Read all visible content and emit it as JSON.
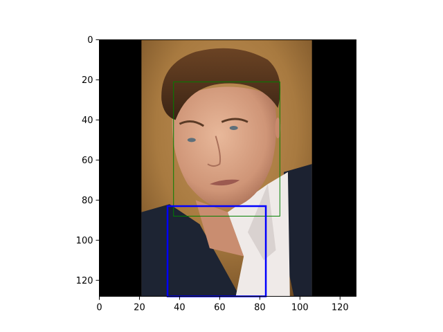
{
  "chart_data": {
    "type": "image",
    "title": "",
    "xlabel": "",
    "ylabel": "",
    "xlim": [
      0,
      128
    ],
    "ylim": [
      128,
      0
    ],
    "y_axis_inverted": true,
    "x_ticks": [
      0,
      20,
      40,
      60,
      80,
      100,
      120
    ],
    "y_ticks": [
      0,
      20,
      40,
      60,
      80,
      100,
      120
    ],
    "grid": false,
    "image": {
      "description": "portrait photo of a man in a dark suit and white open-collar shirt, warm brown background",
      "padding_color": "#000000",
      "photo_x_range": [
        21,
        106
      ]
    },
    "annotations": [
      {
        "type": "rectangle",
        "x": [
          37,
          90
        ],
        "y": [
          21,
          88
        ],
        "color": "#008000",
        "linewidth": 1
      },
      {
        "type": "rectangle",
        "x": [
          34,
          83
        ],
        "y": [
          83,
          128
        ],
        "color": "#0000ff",
        "linewidth": 2.5
      }
    ]
  }
}
